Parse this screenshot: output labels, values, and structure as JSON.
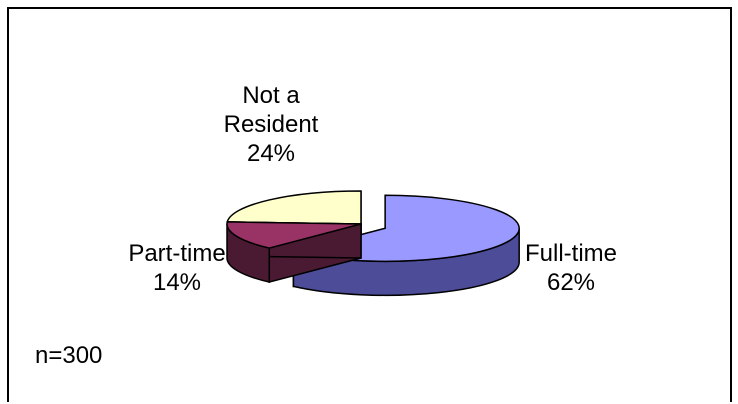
{
  "chart_data": {
    "type": "pie",
    "categories": [
      "Full-time",
      "Part-time",
      "Not a Resident"
    ],
    "values": [
      62,
      14,
      24
    ],
    "labels": [
      {
        "name": "Full-time",
        "pct": "62%"
      },
      {
        "name": "Part-time",
        "pct": "14%"
      },
      {
        "name_line1": "Not a",
        "name_line2": "Resident",
        "pct": "24%"
      }
    ],
    "exploded": [
      "Full-time"
    ],
    "three_d": true,
    "legend": "none",
    "colors": {
      "Full-time": {
        "top": "#9999ff",
        "side": "#4c4c99"
      },
      "Part-time": {
        "top": "#993366",
        "side": "#4a1a33"
      },
      "Not a Resident": {
        "top": "#ffffcc",
        "side": "#99996e"
      }
    },
    "note": "n=300"
  }
}
